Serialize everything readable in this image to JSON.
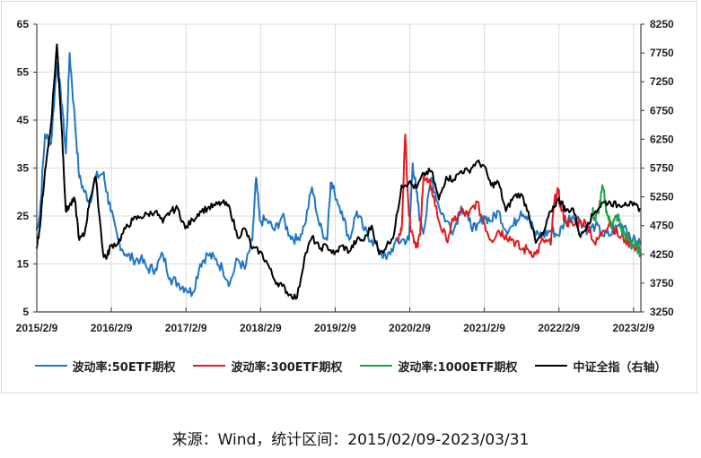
{
  "chart_data": {
    "type": "line",
    "title": "",
    "xlabel": "",
    "ylabel_left": "波动率",
    "ylabel_right": "中证全指（右轴）",
    "x_ticks": [
      "2015/2/9",
      "2016/2/9",
      "2017/2/9",
      "2018/2/9",
      "2019/2/9",
      "2020/2/9",
      "2021/2/9",
      "2022/2/9",
      "2023/2/9"
    ],
    "y_left_ticks": [
      5,
      15,
      25,
      35,
      45,
      55,
      65
    ],
    "y_left_range": [
      5,
      65
    ],
    "y_right_ticks": [
      3250,
      3750,
      4250,
      4750,
      5250,
      5750,
      6250,
      6750,
      7250,
      7750,
      8250
    ],
    "y_right_range": [
      3250,
      8250
    ],
    "grid": true,
    "legend_position": "bottom",
    "series": [
      {
        "name": "波动率:50ETF期权",
        "axis": "left",
        "color": "#1f77c4",
        "x": [
          2015.1,
          2015.15,
          2015.22,
          2015.3,
          2015.38,
          2015.45,
          2015.5,
          2015.55,
          2015.62,
          2015.68,
          2015.75,
          2015.82,
          2015.9,
          2016.0,
          2016.05,
          2016.1,
          2016.2,
          2016.3,
          2016.4,
          2016.5,
          2016.6,
          2016.7,
          2016.8,
          2016.9,
          2017.0,
          2017.1,
          2017.2,
          2017.3,
          2017.4,
          2017.5,
          2017.6,
          2017.7,
          2017.8,
          2017.9,
          2018.0,
          2018.05,
          2018.1,
          2018.2,
          2018.3,
          2018.4,
          2018.5,
          2018.6,
          2018.7,
          2018.8,
          2018.9,
          2019.0,
          2019.05,
          2019.1,
          2019.2,
          2019.3,
          2019.4,
          2019.5,
          2019.6,
          2019.7,
          2019.8,
          2019.9,
          2020.0,
          2020.1,
          2020.15,
          2020.2,
          2020.25,
          2020.3,
          2020.4,
          2020.5,
          2020.6,
          2020.7,
          2020.8,
          2020.9,
          2021.0,
          2021.1,
          2021.2,
          2021.3,
          2021.4,
          2021.5,
          2021.6,
          2021.7,
          2021.8,
          2021.9,
          2022.0,
          2022.1,
          2022.2,
          2022.3,
          2022.4,
          2022.5,
          2022.6,
          2022.7,
          2022.8,
          2022.9,
          2023.0,
          2023.1,
          2023.2
        ],
        "values": [
          22,
          25,
          42,
          40,
          57,
          48,
          38,
          59,
          45,
          33,
          30,
          28,
          33,
          34,
          30,
          26,
          20,
          17,
          16,
          16,
          14,
          14,
          17,
          12,
          11,
          10,
          9,
          15,
          17,
          16,
          14,
          11,
          16,
          14,
          20,
          33,
          24,
          24,
          22,
          25,
          21,
          20,
          23,
          31,
          23,
          20,
          32,
          30,
          26,
          20,
          26,
          22,
          20,
          18,
          16,
          19,
          20,
          20,
          36,
          30,
          24,
          22,
          33,
          27,
          24,
          22,
          27,
          24,
          22,
          25,
          24,
          26,
          22,
          23,
          26,
          25,
          21,
          21,
          22,
          21,
          24,
          25,
          24,
          22,
          23,
          21,
          21,
          23,
          23,
          20,
          19
        ]
      },
      {
        "name": "波动率:300ETF期权",
        "axis": "left",
        "color": "#e3191c",
        "x": [
          2019.95,
          2020.0,
          2020.05,
          2020.1,
          2020.15,
          2020.2,
          2020.25,
          2020.3,
          2020.35,
          2020.4,
          2020.5,
          2020.6,
          2020.7,
          2020.8,
          2020.9,
          2021.0,
          2021.1,
          2021.2,
          2021.3,
          2021.4,
          2021.5,
          2021.6,
          2021.7,
          2021.8,
          2021.9,
          2022.0,
          2022.05,
          2022.1,
          2022.15,
          2022.2,
          2022.3,
          2022.4,
          2022.5,
          2022.6,
          2022.7,
          2022.8,
          2022.9,
          2023.0,
          2023.1,
          2023.2
        ],
        "values": [
          20,
          22,
          42,
          25,
          21,
          19,
          21,
          34,
          32,
          31,
          24,
          20,
          24,
          26,
          25,
          28,
          24,
          20,
          22,
          21,
          20,
          18,
          18,
          17,
          20,
          19,
          28,
          30,
          26,
          24,
          23,
          24,
          23,
          19,
          22,
          24,
          21,
          20,
          19,
          18
        ]
      },
      {
        "name": "波动率:1000ETF期权",
        "axis": "left",
        "color": "#1aa34a",
        "x": [
          2022.56,
          2022.6,
          2022.65,
          2022.7,
          2022.75,
          2022.8,
          2022.85,
          2022.9,
          2022.95,
          2023.0,
          2023.05,
          2023.1,
          2023.15,
          2023.2
        ],
        "values": [
          26,
          24,
          27,
          31,
          26,
          23,
          24,
          25,
          22,
          21,
          20,
          19,
          19,
          17
        ]
      },
      {
        "name": "中证全指（右轴）",
        "axis": "right",
        "color": "#000000",
        "x": [
          2015.1,
          2015.15,
          2015.22,
          2015.3,
          2015.38,
          2015.45,
          2015.5,
          2015.55,
          2015.62,
          2015.68,
          2015.75,
          2015.82,
          2015.9,
          2016.0,
          2016.05,
          2016.1,
          2016.2,
          2016.3,
          2016.4,
          2016.5,
          2016.6,
          2016.7,
          2016.8,
          2016.9,
          2017.0,
          2017.1,
          2017.2,
          2017.3,
          2017.4,
          2017.5,
          2017.6,
          2017.7,
          2017.8,
          2017.9,
          2018.0,
          2018.1,
          2018.2,
          2018.3,
          2018.4,
          2018.5,
          2018.6,
          2018.7,
          2018.8,
          2018.9,
          2019.0,
          2019.1,
          2019.2,
          2019.3,
          2019.4,
          2019.5,
          2019.6,
          2019.7,
          2019.8,
          2019.9,
          2020.0,
          2020.1,
          2020.2,
          2020.3,
          2020.4,
          2020.5,
          2020.6,
          2020.7,
          2020.8,
          2020.9,
          2021.0,
          2021.1,
          2021.2,
          2021.3,
          2021.4,
          2021.5,
          2021.6,
          2021.7,
          2021.8,
          2021.9,
          2022.0,
          2022.1,
          2022.15,
          2022.2,
          2022.3,
          2022.4,
          2022.5,
          2022.6,
          2022.7,
          2022.8,
          2022.9,
          2023.0,
          2023.1,
          2023.2
        ],
        "values": [
          4350,
          4700,
          5700,
          6500,
          7900,
          6300,
          5000,
          5100,
          5200,
          4500,
          4600,
          5200,
          5600,
          4250,
          4200,
          4400,
          4450,
          4700,
          4850,
          4900,
          4950,
          5000,
          4800,
          5000,
          5050,
          4700,
          4850,
          5000,
          5050,
          5100,
          5150,
          5050,
          4550,
          4700,
          4350,
          4300,
          4100,
          3800,
          3700,
          3550,
          3500,
          4200,
          4550,
          4350,
          4400,
          4250,
          4400,
          4300,
          4500,
          4500,
          4750,
          4250,
          4400,
          4600,
          5450,
          5500,
          5400,
          5650,
          5700,
          5200,
          5600,
          5550,
          5700,
          5700,
          5850,
          5800,
          5450,
          5500,
          5000,
          5250,
          5300,
          5000,
          4450,
          4600,
          5000,
          5200,
          5150,
          5000,
          5050,
          4550,
          4800,
          5000,
          5150,
          5150,
          5100,
          5150,
          5100,
          5050
        ]
      }
    ]
  },
  "axes": {
    "left_ticks": [
      "65",
      "55",
      "45",
      "35",
      "25",
      "15",
      "5"
    ],
    "right_ticks": [
      "8250",
      "7750",
      "7250",
      "6750",
      "6250",
      "5750",
      "5250",
      "4750",
      "4250",
      "3750",
      "3250"
    ],
    "x_ticks": [
      "2015/2/9",
      "2016/2/9",
      "2017/2/9",
      "2018/2/9",
      "2019/2/9",
      "2020/2/9",
      "2021/2/9",
      "2022/2/9",
      "2023/2/9"
    ]
  },
  "legend": {
    "items": [
      {
        "label": "波动率:50ETF期权",
        "color": "#1f77c4"
      },
      {
        "label": "波动率:300ETF期权",
        "color": "#e3191c"
      },
      {
        "label": "波动率:1000ETF期权",
        "color": "#1aa34a"
      },
      {
        "label": "中证全指（右轴）",
        "color": "#000000"
      }
    ]
  },
  "source": "来源：Wind，统计区间：2015/02/09-2023/03/31"
}
